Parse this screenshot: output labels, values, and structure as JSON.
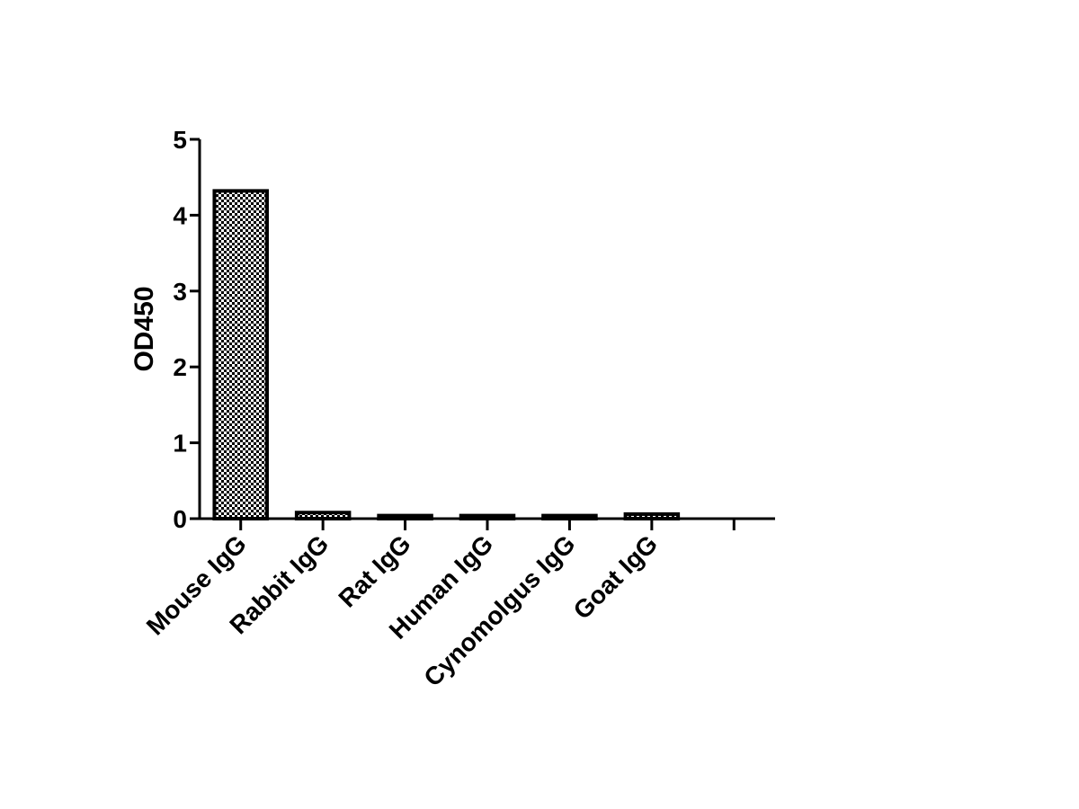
{
  "chart_data": {
    "type": "bar",
    "y_label": "OD450",
    "categories": [
      "Mouse IgG",
      "Rabbit IgG",
      "Rat IgG",
      "Human IgG",
      "Cynomolgus IgG",
      "Goat IgG",
      null
    ],
    "values": [
      4.32,
      0.08,
      0.04,
      0.04,
      0.04,
      0.06,
      null
    ],
    "color": "#000000",
    "ylim": [
      0,
      5
    ],
    "yticks": [
      0,
      1,
      2,
      3,
      4,
      5
    ],
    "grid": false
  }
}
